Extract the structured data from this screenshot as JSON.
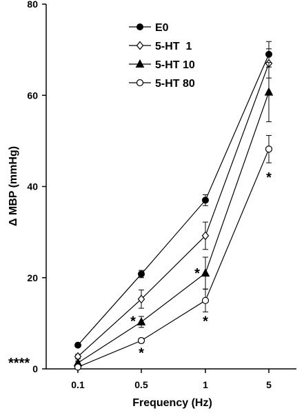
{
  "chart_data": {
    "type": "line",
    "categories": [
      "0.1",
      "0.5",
      "1",
      "5"
    ],
    "xlabel": "Frequency (Hz)",
    "ylabel": "Δ MBP (mmHg)",
    "ylim": [
      0,
      80
    ],
    "yticks": [
      0,
      20,
      40,
      60,
      80
    ],
    "grid": false,
    "legend_position": "top-left",
    "series": [
      {
        "name": "E0",
        "marker": "filled-circle",
        "values": [
          5.2,
          20.8,
          37.0,
          69.0
        ],
        "errors": [
          0.3,
          0.8,
          1.2,
          2.8
        ]
      },
      {
        "name": "5-HT  1",
        "marker": "open-diamond",
        "values": [
          2.7,
          15.3,
          29.2,
          67.0
        ],
        "errors": [
          0.5,
          2.0,
          3.0,
          3.2
        ]
      },
      {
        "name": "5-HT 10",
        "marker": "filled-triangle",
        "values": [
          1.3,
          10.3,
          21.0,
          60.7
        ],
        "errors": [
          0.4,
          1.2,
          3.5,
          6.5
        ]
      },
      {
        "name": "5-HT 80",
        "marker": "open-circle",
        "values": [
          0.4,
          6.2,
          15.0,
          48.2
        ],
        "errors": [
          0.2,
          0.5,
          2.5,
          3.0
        ]
      }
    ],
    "annotations": {
      "baseline_marks": "****",
      "significance": [
        {
          "text": "*",
          "category": "0.5",
          "value": 11.0,
          "side": "left"
        },
        {
          "text": "*",
          "category": "0.5",
          "value": 4.0,
          "side": "below"
        },
        {
          "text": "*",
          "category": "1",
          "value": 21.5,
          "side": "left"
        },
        {
          "text": "*",
          "category": "1",
          "value": 11.0,
          "side": "below"
        },
        {
          "text": "*",
          "category": "5",
          "value": 42.5,
          "side": "below"
        }
      ]
    }
  }
}
